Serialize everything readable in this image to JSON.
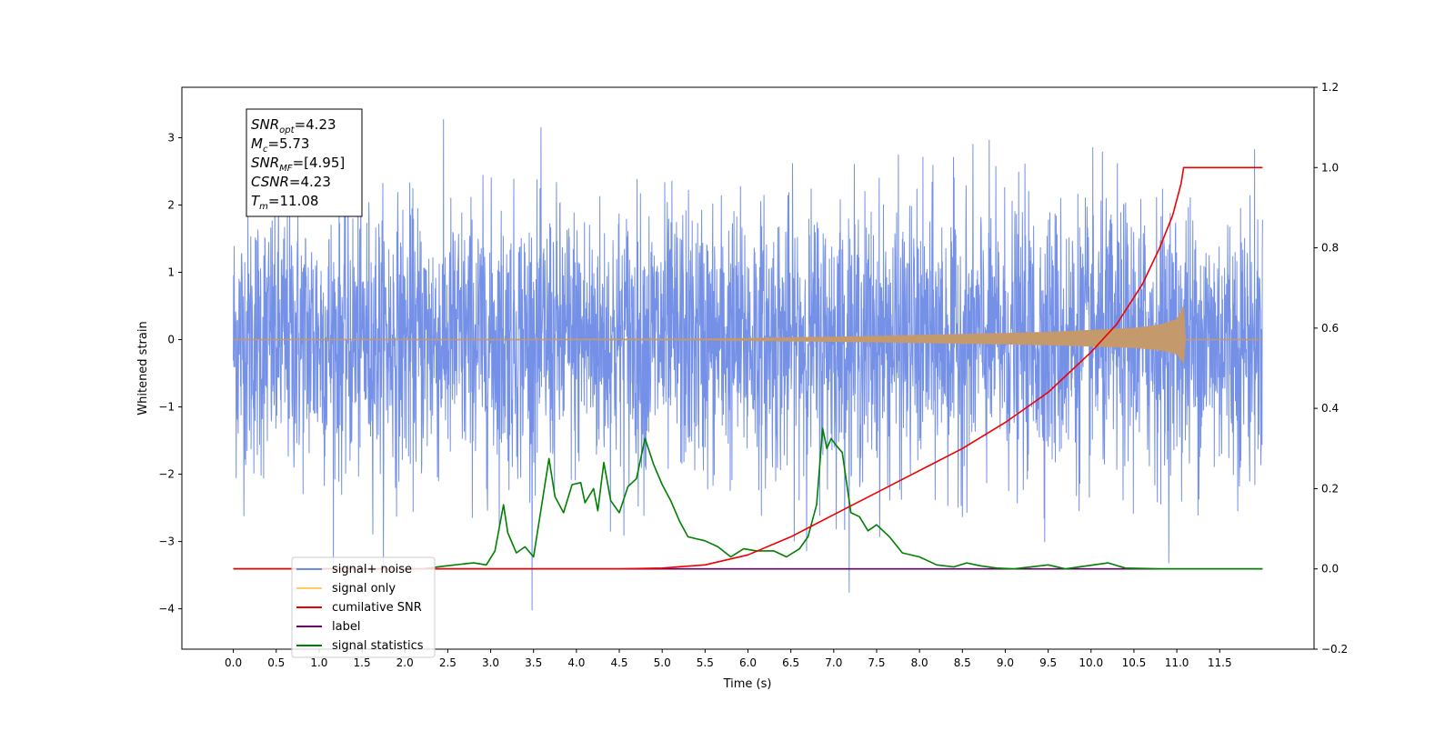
{
  "chart_data": {
    "type": "line",
    "title": "",
    "xlabel": "Time (s)",
    "ylabel_left": "Whitened strain",
    "ylabel_right": "",
    "xlim": [
      -0.6,
      12.6
    ],
    "ylim_left": [
      -4.6,
      3.75
    ],
    "ylim_right": [
      -0.2,
      1.2
    ],
    "x_ticks": [
      "0.0",
      "0.5",
      "1.0",
      "1.5",
      "2.0",
      "2.5",
      "3.0",
      "3.5",
      "4.0",
      "4.5",
      "5.0",
      "5.5",
      "6.0",
      "6.5",
      "7.0",
      "7.5",
      "8.0",
      "8.5",
      "9.0",
      "9.5",
      "10.0",
      "10.5",
      "11.0",
      "11.5"
    ],
    "y_ticks_left": [
      "−4",
      "−3",
      "−2",
      "−1",
      "0",
      "1",
      "2",
      "3"
    ],
    "y_ticks_right": [
      "−0.2",
      "0.0",
      "0.2",
      "0.4",
      "0.6",
      "0.8",
      "1.0",
      "1.2"
    ],
    "grid": false,
    "legend_position": "lower-left",
    "colors": {
      "signal_noise": "#6d8ae6",
      "signal_only_legend": "#ffcc66",
      "signal_only_fill": "#c49a6c",
      "cumulative_snr": "#ee0000",
      "label": "#660066",
      "signal_statistics": "#007f00"
    },
    "annotation": {
      "lines": [
        {
          "base": "SNR",
          "sub": "opt",
          "rest": "=4.23"
        },
        {
          "base": "M",
          "sub": "c",
          "rest": "=5.73"
        },
        {
          "base": "SNR",
          "sub": "MF",
          "rest": "=[4.95]"
        },
        {
          "base": "CSNR",
          "sub": "",
          "rest": "=4.23"
        },
        {
          "base": "T",
          "sub": "m",
          "rest": "=11.08"
        }
      ]
    },
    "series": [
      {
        "name": "signal+ noise",
        "axis": "left",
        "x_range": [
          0,
          12
        ],
        "envelope_typical": [
          -1.6,
          1.6
        ],
        "min": -4.1,
        "max": 3.45
      },
      {
        "name": "signal only",
        "axis": "left",
        "x": [
          0,
          5.5,
          6.5,
          7.5,
          8.5,
          9.5,
          10.0,
          10.5,
          10.8,
          11.0,
          11.05,
          11.08,
          11.1,
          12.0
        ],
        "amplitude": [
          0.0,
          0.01,
          0.03,
          0.05,
          0.08,
          0.11,
          0.14,
          0.17,
          0.22,
          0.3,
          0.42,
          0.5,
          0.0,
          0.0
        ]
      },
      {
        "name": "cumilative SNR",
        "axis": "right",
        "x": [
          0,
          4.5,
          5.0,
          5.5,
          6.0,
          6.5,
          7.0,
          7.5,
          8.0,
          8.5,
          9.0,
          9.5,
          10.0,
          10.3,
          10.6,
          10.8,
          10.95,
          11.05,
          11.08,
          12.0
        ],
        "y": [
          0.0,
          0.0,
          0.002,
          0.01,
          0.035,
          0.08,
          0.135,
          0.19,
          0.245,
          0.3,
          0.365,
          0.44,
          0.54,
          0.61,
          0.71,
          0.8,
          0.88,
          0.96,
          1.0,
          1.0
        ]
      },
      {
        "name": "label",
        "axis": "right",
        "x": [
          0,
          12
        ],
        "y": [
          0.0,
          0.0
        ]
      },
      {
        "name": "signal statistics",
        "axis": "right",
        "x": [
          0,
          2.2,
          2.5,
          2.8,
          2.95,
          3.05,
          3.15,
          3.2,
          3.3,
          3.4,
          3.5,
          3.6,
          3.68,
          3.75,
          3.85,
          3.95,
          4.05,
          4.1,
          4.2,
          4.25,
          4.32,
          4.4,
          4.5,
          4.6,
          4.7,
          4.8,
          4.9,
          5.0,
          5.1,
          5.2,
          5.3,
          5.4,
          5.5,
          5.65,
          5.8,
          5.95,
          6.1,
          6.3,
          6.45,
          6.6,
          6.7,
          6.8,
          6.87,
          6.92,
          6.97,
          7.02,
          7.1,
          7.2,
          7.3,
          7.4,
          7.5,
          7.65,
          7.8,
          8.0,
          8.2,
          8.4,
          8.55,
          8.7,
          8.9,
          9.1,
          9.5,
          9.7,
          10.2,
          10.4,
          10.8,
          12.0
        ],
        "y": [
          0.0,
          0.0,
          0.008,
          0.015,
          0.01,
          0.045,
          0.16,
          0.09,
          0.04,
          0.055,
          0.03,
          0.165,
          0.275,
          0.18,
          0.14,
          0.21,
          0.215,
          0.165,
          0.2,
          0.145,
          0.265,
          0.17,
          0.14,
          0.205,
          0.225,
          0.325,
          0.26,
          0.21,
          0.17,
          0.12,
          0.08,
          0.075,
          0.07,
          0.055,
          0.03,
          0.05,
          0.045,
          0.045,
          0.03,
          0.05,
          0.08,
          0.16,
          0.35,
          0.3,
          0.325,
          0.31,
          0.29,
          0.14,
          0.13,
          0.095,
          0.11,
          0.08,
          0.04,
          0.03,
          0.01,
          0.005,
          0.015,
          0.008,
          0.002,
          0.0,
          0.01,
          0.0,
          0.015,
          0.002,
          0.0,
          0.0
        ]
      }
    ]
  }
}
